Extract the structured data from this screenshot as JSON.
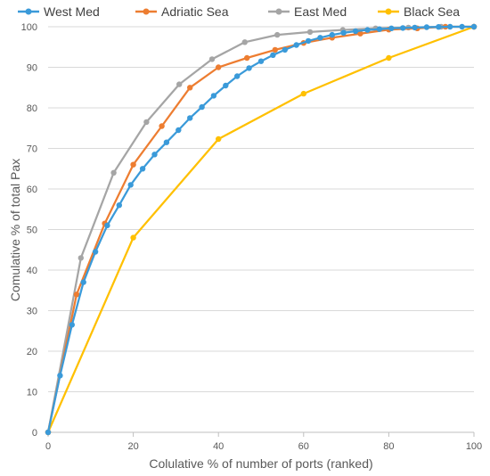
{
  "chart_data": {
    "type": "line",
    "title": "",
    "xlabel": "Colulative % of number of ports (ranked)",
    "ylabel": "Comulative % of total Pax",
    "xlim": [
      0,
      100
    ],
    "ylim": [
      0,
      100
    ],
    "x_ticks": [
      "0",
      "20",
      "40",
      "60",
      "80",
      "100"
    ],
    "y_ticks": [
      "0",
      "10",
      "20",
      "30",
      "40",
      "50",
      "60",
      "70",
      "80",
      "90",
      "100"
    ],
    "grid": "horizontal",
    "legend_position": "top",
    "series": [
      {
        "name": "West Med",
        "color": "#3a9ad9",
        "points": [
          [
            0,
            0
          ],
          [
            2.8,
            14
          ],
          [
            5.6,
            26.5
          ],
          [
            8.3,
            37
          ],
          [
            11.1,
            44.5
          ],
          [
            13.9,
            51
          ],
          [
            16.7,
            56
          ],
          [
            19.4,
            61
          ],
          [
            22.2,
            65
          ],
          [
            25,
            68.5
          ],
          [
            27.8,
            71.5
          ],
          [
            30.6,
            74.5
          ],
          [
            33.3,
            77.5
          ],
          [
            36.1,
            80.2
          ],
          [
            38.9,
            83
          ],
          [
            41.7,
            85.5
          ],
          [
            44.4,
            87.8
          ],
          [
            47.2,
            89.8
          ],
          [
            50,
            91.5
          ],
          [
            52.8,
            93
          ],
          [
            55.6,
            94.3
          ],
          [
            58.3,
            95.5
          ],
          [
            61.1,
            96.5
          ],
          [
            63.9,
            97.3
          ],
          [
            66.7,
            98
          ],
          [
            69.4,
            98.5
          ],
          [
            72.2,
            98.9
          ],
          [
            75,
            99.2
          ],
          [
            77.8,
            99.4
          ],
          [
            80.6,
            99.6
          ],
          [
            83.3,
            99.7
          ],
          [
            86.1,
            99.8
          ],
          [
            88.9,
            99.9
          ],
          [
            91.7,
            99.95
          ],
          [
            94.4,
            100
          ],
          [
            97.2,
            100
          ],
          [
            100,
            100
          ]
        ]
      },
      {
        "name": "Adriatic Sea",
        "color": "#ed7d31",
        "points": [
          [
            0,
            0
          ],
          [
            6.7,
            34
          ],
          [
            13.3,
            51.5
          ],
          [
            20,
            66
          ],
          [
            26.7,
            75.5
          ],
          [
            33.3,
            85
          ],
          [
            40,
            90
          ],
          [
            46.7,
            92.3
          ],
          [
            53.3,
            94.3
          ],
          [
            60,
            96
          ],
          [
            66.7,
            97.3
          ],
          [
            73.3,
            98.3
          ],
          [
            80,
            99.3
          ],
          [
            86.7,
            99.6
          ],
          [
            93.3,
            100
          ],
          [
            100,
            100
          ]
        ]
      },
      {
        "name": "East Med",
        "color": "#a5a5a5",
        "points": [
          [
            0,
            0
          ],
          [
            7.7,
            43
          ],
          [
            15.4,
            64
          ],
          [
            23.1,
            76.5
          ],
          [
            30.8,
            85.8
          ],
          [
            38.5,
            92
          ],
          [
            46.2,
            96.2
          ],
          [
            53.8,
            98
          ],
          [
            61.5,
            98.7
          ],
          [
            69.2,
            99.2
          ],
          [
            76.9,
            99.6
          ],
          [
            84.6,
            99.8
          ],
          [
            92.3,
            100
          ],
          [
            100,
            100
          ]
        ]
      },
      {
        "name": "Black Sea",
        "color": "#ffc000",
        "points": [
          [
            0,
            0
          ],
          [
            20,
            48
          ],
          [
            40,
            72.3
          ],
          [
            60,
            83.5
          ],
          [
            80,
            92.3
          ],
          [
            100,
            100
          ]
        ]
      }
    ]
  }
}
